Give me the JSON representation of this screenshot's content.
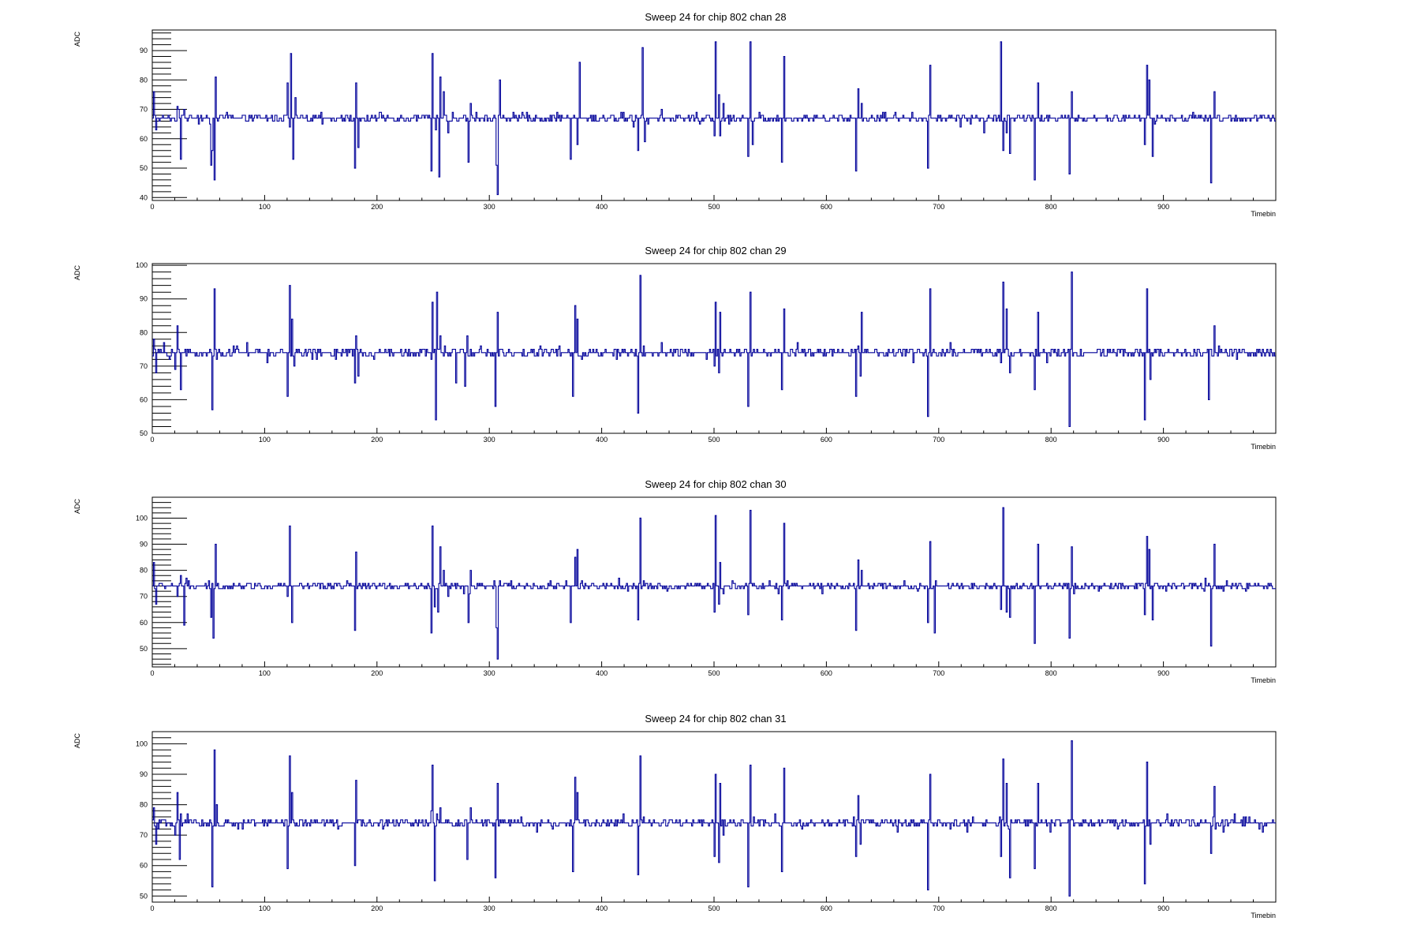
{
  "colors": {
    "trace": "#000099",
    "frame": "#000000",
    "background": "#ffffff"
  },
  "chart_data": [
    {
      "type": "line",
      "step": true,
      "title": "Sweep 24 for chip 802 chan 28",
      "xlabel": "Timebin",
      "ylabel": "ADC",
      "xlim": [
        0,
        1000
      ],
      "ylim": [
        39,
        97
      ],
      "xticks": [
        0,
        100,
        200,
        300,
        400,
        500,
        600,
        700,
        800,
        900
      ],
      "yticks": [
        40,
        50,
        60,
        70,
        80,
        90
      ],
      "baseline": 67,
      "noise": 1.0,
      "spikes": [
        [
          1,
          76
        ],
        [
          3,
          63
        ],
        [
          12,
          67
        ],
        [
          22,
          71
        ],
        [
          25,
          53
        ],
        [
          28,
          70
        ],
        [
          52,
          51
        ],
        [
          53,
          56
        ],
        [
          55,
          46
        ],
        [
          56,
          81
        ],
        [
          120,
          79
        ],
        [
          122,
          64
        ],
        [
          123,
          89
        ],
        [
          125,
          53
        ],
        [
          127,
          74
        ],
        [
          180,
          50
        ],
        [
          181,
          79
        ],
        [
          183,
          57
        ],
        [
          248,
          49
        ],
        [
          249,
          89
        ],
        [
          252,
          63
        ],
        [
          255,
          47
        ],
        [
          256,
          81
        ],
        [
          259,
          76
        ],
        [
          263,
          62
        ],
        [
          281,
          52
        ],
        [
          283,
          72
        ],
        [
          306,
          51
        ],
        [
          307,
          41
        ],
        [
          309,
          80
        ],
        [
          372,
          53
        ],
        [
          378,
          58
        ],
        [
          380,
          86
        ],
        [
          432,
          56
        ],
        [
          436,
          91
        ],
        [
          438,
          59
        ],
        [
          500,
          61
        ],
        [
          501,
          93
        ],
        [
          504,
          75
        ],
        [
          505,
          61
        ],
        [
          508,
          72
        ],
        [
          530,
          54
        ],
        [
          532,
          93
        ],
        [
          534,
          58
        ],
        [
          560,
          52
        ],
        [
          562,
          88
        ],
        [
          626,
          49
        ],
        [
          628,
          77
        ],
        [
          631,
          72
        ],
        [
          690,
          50
        ],
        [
          692,
          85
        ],
        [
          740,
          62
        ],
        [
          755,
          93
        ],
        [
          757,
          56
        ],
        [
          760,
          62
        ],
        [
          763,
          55
        ],
        [
          785,
          46
        ],
        [
          788,
          79
        ],
        [
          816,
          48
        ],
        [
          818,
          76
        ],
        [
          883,
          58
        ],
        [
          885,
          85
        ],
        [
          887,
          80
        ],
        [
          890,
          54
        ],
        [
          942,
          45
        ],
        [
          945,
          76
        ]
      ]
    },
    {
      "type": "line",
      "step": true,
      "title": "Sweep 24 for chip 802 chan 29",
      "xlabel": "Timebin",
      "ylabel": "ADC",
      "xlim": [
        0,
        1000
      ],
      "ylim": [
        50,
        100.5
      ],
      "xticks": [
        0,
        100,
        200,
        300,
        400,
        500,
        600,
        700,
        800,
        900
      ],
      "yticks": [
        50,
        60,
        70,
        80,
        90,
        100
      ],
      "baseline": 74,
      "noise": 1.0,
      "spikes": [
        [
          1,
          78
        ],
        [
          3,
          68
        ],
        [
          10,
          77
        ],
        [
          20,
          69
        ],
        [
          22,
          82
        ],
        [
          25,
          63
        ],
        [
          53,
          57
        ],
        [
          55,
          93
        ],
        [
          57,
          72
        ],
        [
          120,
          61
        ],
        [
          122,
          94
        ],
        [
          124,
          84
        ],
        [
          126,
          70
        ],
        [
          180,
          65
        ],
        [
          181,
          79
        ],
        [
          183,
          67
        ],
        [
          248,
          72
        ],
        [
          249,
          89
        ],
        [
          252,
          54
        ],
        [
          253,
          92
        ],
        [
          256,
          79
        ],
        [
          260,
          76
        ],
        [
          270,
          65
        ],
        [
          278,
          64
        ],
        [
          280,
          79
        ],
        [
          305,
          58
        ],
        [
          307,
          86
        ],
        [
          374,
          61
        ],
        [
          376,
          88
        ],
        [
          378,
          84
        ],
        [
          432,
          56
        ],
        [
          434,
          97
        ],
        [
          437,
          76
        ],
        [
          500,
          70
        ],
        [
          501,
          89
        ],
        [
          504,
          68
        ],
        [
          505,
          86
        ],
        [
          508,
          74
        ],
        [
          530,
          58
        ],
        [
          532,
          92
        ],
        [
          560,
          63
        ],
        [
          562,
          87
        ],
        [
          626,
          61
        ],
        [
          628,
          76
        ],
        [
          630,
          67
        ],
        [
          631,
          86
        ],
        [
          690,
          55
        ],
        [
          692,
          93
        ],
        [
          755,
          71
        ],
        [
          757,
          95
        ],
        [
          760,
          87
        ],
        [
          763,
          68
        ],
        [
          785,
          63
        ],
        [
          788,
          86
        ],
        [
          816,
          52
        ],
        [
          818,
          98
        ],
        [
          883,
          54
        ],
        [
          885,
          93
        ],
        [
          888,
          66
        ],
        [
          940,
          60
        ],
        [
          945,
          82
        ]
      ]
    },
    {
      "type": "line",
      "step": true,
      "title": "Sweep 24 for chip 802 chan 30",
      "xlabel": "Timebin",
      "ylabel": "ADC",
      "xlim": [
        0,
        1000
      ],
      "ylim": [
        43,
        108
      ],
      "xticks": [
        0,
        100,
        200,
        300,
        400,
        500,
        600,
        700,
        800,
        900
      ],
      "yticks": [
        50,
        60,
        70,
        80,
        90,
        100
      ],
      "baseline": 74,
      "noise": 1.0,
      "spikes": [
        [
          1,
          83
        ],
        [
          3,
          67
        ],
        [
          12,
          74
        ],
        [
          22,
          70
        ],
        [
          25,
          78
        ],
        [
          28,
          59
        ],
        [
          52,
          62
        ],
        [
          54,
          54
        ],
        [
          56,
          90
        ],
        [
          120,
          70
        ],
        [
          122,
          97
        ],
        [
          124,
          60
        ],
        [
          180,
          57
        ],
        [
          181,
          87
        ],
        [
          248,
          56
        ],
        [
          249,
          97
        ],
        [
          251,
          66
        ],
        [
          254,
          64
        ],
        [
          256,
          89
        ],
        [
          259,
          80
        ],
        [
          263,
          70
        ],
        [
          281,
          60
        ],
        [
          283,
          80
        ],
        [
          306,
          58
        ],
        [
          307,
          46
        ],
        [
          309,
          76
        ],
        [
          372,
          60
        ],
        [
          376,
          85
        ],
        [
          378,
          88
        ],
        [
          432,
          61
        ],
        [
          434,
          100
        ],
        [
          437,
          76
        ],
        [
          500,
          64
        ],
        [
          501,
          101
        ],
        [
          504,
          67
        ],
        [
          505,
          83
        ],
        [
          508,
          71
        ],
        [
          530,
          63
        ],
        [
          532,
          103
        ],
        [
          560,
          61
        ],
        [
          562,
          98
        ],
        [
          626,
          57
        ],
        [
          628,
          84
        ],
        [
          631,
          80
        ],
        [
          690,
          60
        ],
        [
          692,
          91
        ],
        [
          696,
          56
        ],
        [
          755,
          65
        ],
        [
          757,
          104
        ],
        [
          760,
          64
        ],
        [
          763,
          62
        ],
        [
          785,
          52
        ],
        [
          788,
          90
        ],
        [
          816,
          54
        ],
        [
          818,
          89
        ],
        [
          883,
          63
        ],
        [
          885,
          93
        ],
        [
          887,
          88
        ],
        [
          890,
          61
        ],
        [
          942,
          51
        ],
        [
          945,
          90
        ]
      ]
    },
    {
      "type": "line",
      "step": true,
      "title": "Sweep 24 for chip 802 chan 31",
      "xlabel": "Timebin",
      "ylabel": "ADC",
      "xlim": [
        0,
        1000
      ],
      "ylim": [
        48,
        104
      ],
      "xticks": [
        0,
        100,
        200,
        300,
        400,
        500,
        600,
        700,
        800,
        900
      ],
      "yticks": [
        50,
        60,
        70,
        80,
        90,
        100
      ],
      "baseline": 74,
      "noise": 1.0,
      "spikes": [
        [
          1,
          79
        ],
        [
          3,
          67
        ],
        [
          12,
          73
        ],
        [
          20,
          70
        ],
        [
          22,
          84
        ],
        [
          24,
          62
        ],
        [
          53,
          53
        ],
        [
          55,
          98
        ],
        [
          57,
          80
        ],
        [
          120,
          59
        ],
        [
          122,
          96
        ],
        [
          124,
          84
        ],
        [
          180,
          60
        ],
        [
          181,
          88
        ],
        [
          248,
          78
        ],
        [
          249,
          93
        ],
        [
          251,
          55
        ],
        [
          253,
          77
        ],
        [
          256,
          79
        ],
        [
          280,
          62
        ],
        [
          283,
          79
        ],
        [
          305,
          56
        ],
        [
          307,
          87
        ],
        [
          374,
          58
        ],
        [
          376,
          89
        ],
        [
          378,
          84
        ],
        [
          432,
          57
        ],
        [
          434,
          96
        ],
        [
          437,
          76
        ],
        [
          500,
          63
        ],
        [
          501,
          90
        ],
        [
          504,
          61
        ],
        [
          505,
          87
        ],
        [
          508,
          70
        ],
        [
          530,
          53
        ],
        [
          532,
          93
        ],
        [
          560,
          58
        ],
        [
          562,
          92
        ],
        [
          626,
          63
        ],
        [
          628,
          83
        ],
        [
          630,
          67
        ],
        [
          690,
          52
        ],
        [
          692,
          90
        ],
        [
          755,
          63
        ],
        [
          757,
          95
        ],
        [
          760,
          87
        ],
        [
          763,
          56
        ],
        [
          785,
          59
        ],
        [
          788,
          87
        ],
        [
          816,
          50
        ],
        [
          818,
          101
        ],
        [
          883,
          54
        ],
        [
          885,
          94
        ],
        [
          888,
          67
        ],
        [
          942,
          64
        ],
        [
          945,
          86
        ]
      ]
    }
  ]
}
